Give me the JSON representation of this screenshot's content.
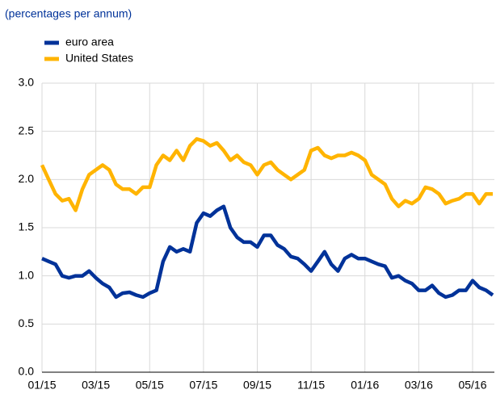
{
  "chart_data": {
    "type": "line",
    "subtitle": "(percentages per annum)",
    "categories": [
      "01/15",
      null,
      null,
      null,
      null,
      null,
      null,
      null,
      "03/15",
      null,
      null,
      null,
      null,
      null,
      null,
      null,
      "05/15",
      null,
      null,
      null,
      null,
      null,
      null,
      null,
      "07/15",
      null,
      null,
      null,
      null,
      null,
      null,
      null,
      "09/15",
      null,
      null,
      null,
      null,
      null,
      null,
      null,
      "11/15",
      null,
      null,
      null,
      null,
      null,
      null,
      null,
      "01/16",
      null,
      null,
      null,
      null,
      null,
      null,
      null,
      "03/16",
      null,
      null,
      null,
      null,
      null,
      null,
      null,
      "05/16",
      null,
      null,
      null
    ],
    "series": [
      {
        "name": "euro area",
        "color": "#003299",
        "values": [
          1.18,
          1.15,
          1.12,
          1.0,
          0.98,
          1.0,
          1.0,
          1.05,
          0.98,
          0.92,
          0.88,
          0.78,
          0.82,
          0.83,
          0.8,
          0.78,
          0.82,
          0.85,
          1.15,
          1.3,
          1.25,
          1.28,
          1.25,
          1.55,
          1.65,
          1.62,
          1.68,
          1.72,
          1.5,
          1.4,
          1.35,
          1.35,
          1.3,
          1.42,
          1.42,
          1.32,
          1.28,
          1.2,
          1.18,
          1.12,
          1.05,
          1.15,
          1.25,
          1.12,
          1.05,
          1.18,
          1.22,
          1.18,
          1.18,
          1.15,
          1.12,
          1.1,
          0.98,
          1.0,
          0.95,
          0.92,
          0.85,
          0.85,
          0.9,
          0.82,
          0.78,
          0.8,
          0.85,
          0.85,
          0.95,
          0.88,
          0.85,
          0.8
        ]
      },
      {
        "name": "United States",
        "color": "#ffb400",
        "values": [
          2.15,
          2.0,
          1.85,
          1.78,
          1.8,
          1.68,
          1.9,
          2.05,
          2.1,
          2.15,
          2.1,
          1.95,
          1.9,
          1.9,
          1.85,
          1.92,
          1.92,
          2.15,
          2.25,
          2.2,
          2.3,
          2.2,
          2.35,
          2.42,
          2.4,
          2.35,
          2.38,
          2.3,
          2.2,
          2.25,
          2.18,
          2.15,
          2.05,
          2.15,
          2.18,
          2.1,
          2.05,
          2.0,
          2.05,
          2.1,
          2.3,
          2.33,
          2.25,
          2.22,
          2.25,
          2.25,
          2.28,
          2.25,
          2.2,
          2.05,
          2.0,
          1.95,
          1.8,
          1.72,
          1.78,
          1.75,
          1.8,
          1.92,
          1.9,
          1.85,
          1.75,
          1.78,
          1.8,
          1.85,
          1.85,
          1.75,
          1.85,
          1.85
        ]
      }
    ],
    "ylim": [
      0,
      3
    ],
    "yticks": [
      {
        "value": 0,
        "label": "0.0"
      },
      {
        "value": 0.5,
        "label": "0.5"
      },
      {
        "value": 1,
        "label": "1.0"
      },
      {
        "value": 1.5,
        "label": "1.5"
      },
      {
        "value": 2,
        "label": "2.0"
      },
      {
        "value": 2.5,
        "label": "2.5"
      },
      {
        "value": 3,
        "label": "3.0"
      }
    ],
    "grid": true,
    "legend": "top-left"
  }
}
